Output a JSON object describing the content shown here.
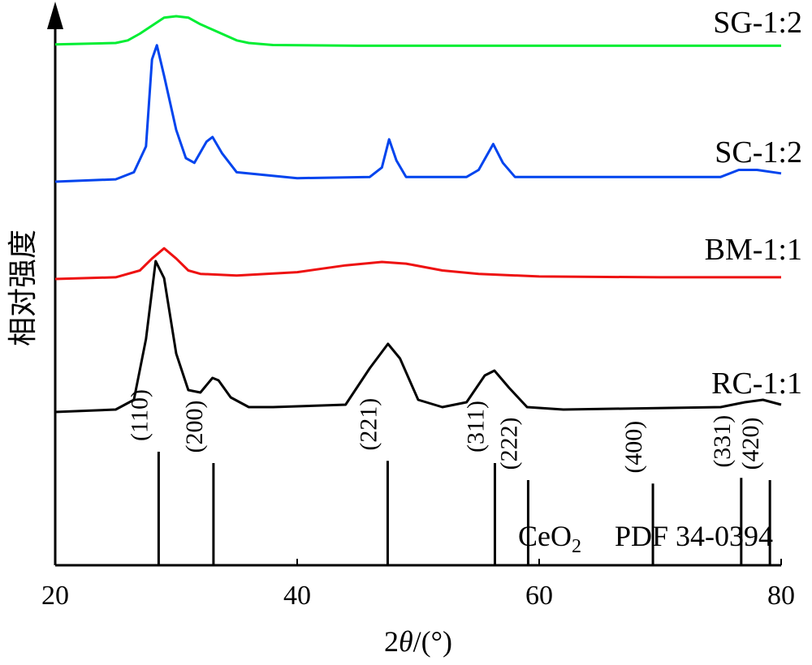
{
  "chart_data": {
    "type": "line",
    "xlabel_prefix": "2",
    "xlabel_theta": "θ",
    "xlabel_suffix": "/(°)",
    "ylabel": "相对强度",
    "xlim": [
      20,
      80
    ],
    "x_ticks": [
      "20",
      "40",
      "60",
      "80"
    ],
    "series": [
      {
        "name": "SG-1:2",
        "color": "#00ee33",
        "points": [
          [
            20,
            0.02
          ],
          [
            25,
            0.03
          ],
          [
            26,
            0.05
          ],
          [
            27,
            0.1
          ],
          [
            28,
            0.16
          ],
          [
            29,
            0.22
          ],
          [
            30,
            0.23
          ],
          [
            31,
            0.22
          ],
          [
            32,
            0.17
          ],
          [
            33,
            0.13
          ],
          [
            34,
            0.09
          ],
          [
            35,
            0.05
          ],
          [
            36,
            0.03
          ],
          [
            38,
            0.015
          ],
          [
            45,
            0.01
          ],
          [
            60,
            0.01
          ],
          [
            80,
            0.01
          ]
        ]
      },
      {
        "name": "SC-1:2",
        "color": "#0044ee",
        "points": [
          [
            20,
            0.0
          ],
          [
            25,
            0.01
          ],
          [
            26.5,
            0.04
          ],
          [
            27.5,
            0.15
          ],
          [
            28,
            0.52
          ],
          [
            28.4,
            0.58
          ],
          [
            29,
            0.45
          ],
          [
            30,
            0.22
          ],
          [
            30.8,
            0.1
          ],
          [
            31.5,
            0.08
          ],
          [
            32.5,
            0.17
          ],
          [
            33,
            0.19
          ],
          [
            33.8,
            0.12
          ],
          [
            35,
            0.04
          ],
          [
            40,
            0.015
          ],
          [
            46,
            0.02
          ],
          [
            47,
            0.06
          ],
          [
            47.6,
            0.18
          ],
          [
            48.2,
            0.09
          ],
          [
            49,
            0.02
          ],
          [
            54,
            0.02
          ],
          [
            55,
            0.05
          ],
          [
            56.2,
            0.16
          ],
          [
            57,
            0.08
          ],
          [
            58,
            0.02
          ],
          [
            75,
            0.02
          ],
          [
            76.5,
            0.05
          ],
          [
            78,
            0.05
          ],
          [
            80,
            0.035
          ]
        ]
      },
      {
        "name": "BM-1:1",
        "color": "#ee1111",
        "points": [
          [
            20,
            0.0
          ],
          [
            25,
            0.01
          ],
          [
            27,
            0.05
          ],
          [
            28,
            0.12
          ],
          [
            29,
            0.18
          ],
          [
            30,
            0.12
          ],
          [
            31,
            0.05
          ],
          [
            32,
            0.03
          ],
          [
            35,
            0.02
          ],
          [
            40,
            0.04
          ],
          [
            44,
            0.08
          ],
          [
            47,
            0.1
          ],
          [
            49,
            0.09
          ],
          [
            52,
            0.05
          ],
          [
            55,
            0.03
          ],
          [
            60,
            0.015
          ],
          [
            70,
            0.01
          ],
          [
            80,
            0.01
          ]
        ]
      },
      {
        "name": "RC-1:1",
        "color": "#000000",
        "points": [
          [
            20,
            0.0
          ],
          [
            25,
            0.01
          ],
          [
            26.5,
            0.05
          ],
          [
            27.5,
            0.3
          ],
          [
            28.3,
            0.62
          ],
          [
            29,
            0.55
          ],
          [
            30,
            0.24
          ],
          [
            31,
            0.09
          ],
          [
            32,
            0.08
          ],
          [
            33,
            0.14
          ],
          [
            33.5,
            0.13
          ],
          [
            34.5,
            0.06
          ],
          [
            36,
            0.02
          ],
          [
            38,
            0.02
          ],
          [
            44,
            0.03
          ],
          [
            46,
            0.18
          ],
          [
            47.5,
            0.28
          ],
          [
            48.5,
            0.22
          ],
          [
            50,
            0.05
          ],
          [
            52,
            0.02
          ],
          [
            54,
            0.04
          ],
          [
            55.5,
            0.15
          ],
          [
            56.3,
            0.17
          ],
          [
            57.5,
            0.1
          ],
          [
            59,
            0.02
          ],
          [
            62,
            0.01
          ],
          [
            75,
            0.02
          ],
          [
            77,
            0.04
          ],
          [
            78.5,
            0.05
          ],
          [
            80,
            0.03
          ]
        ]
      }
    ],
    "reference": {
      "name": "CeO₂ PDF 34-0394",
      "label_main": "CeO",
      "label_sub": "2",
      "label_pdf": "PDF  34-0394",
      "peaks": [
        {
          "x": 28.55,
          "hkl": "(110)",
          "height": 1.0
        },
        {
          "x": 33.08,
          "hkl": "(200)",
          "height": 0.9
        },
        {
          "x": 47.48,
          "hkl": "(221)",
          "height": 0.92
        },
        {
          "x": 56.34,
          "hkl": "(311)",
          "height": 0.9
        },
        {
          "x": 59.09,
          "hkl": "(222)",
          "height": 0.75
        },
        {
          "x": 69.4,
          "hkl": "(400)",
          "height": 0.72
        },
        {
          "x": 76.7,
          "hkl": "(331)",
          "height": 0.77
        },
        {
          "x": 79.07,
          "hkl": "(420)",
          "height": 0.75
        }
      ]
    }
  }
}
